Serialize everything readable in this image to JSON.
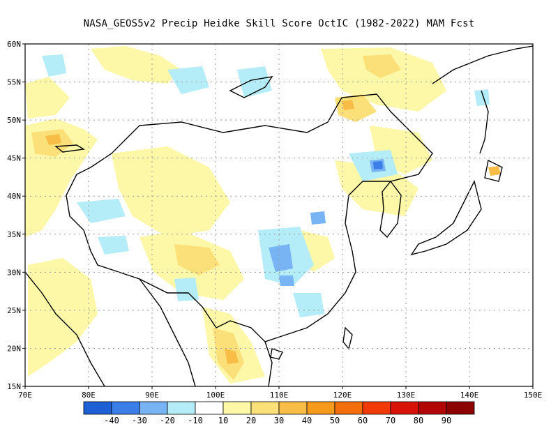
{
  "title": "NASA_GEOS5v2 Precip Heidke Skill Score OctIC (1982-2022) MAM Fcst",
  "map": {
    "lon_range": [
      70,
      150
    ],
    "lat_range": [
      15,
      60
    ],
    "lon_ticks": [
      "70E",
      "80E",
      "90E",
      "100E",
      "110E",
      "120E",
      "130E",
      "140E",
      "150E"
    ],
    "lat_ticks": [
      "15N",
      "20N",
      "25N",
      "30N",
      "35N",
      "40N",
      "45N",
      "50N",
      "55N",
      "60N"
    ],
    "grid": true
  },
  "colorbar": {
    "colors": [
      "#1f5fd6",
      "#3c7ee8",
      "#78b4f3",
      "#b4ecf8",
      "#ffffff",
      "#fdf7a8",
      "#fbe07a",
      "#f7bd47",
      "#f59a1a",
      "#f46f0c",
      "#f23a08",
      "#d81208",
      "#b30606",
      "#8c0303"
    ],
    "labels": [
      "-40",
      "-30",
      "-20",
      "-10",
      "10",
      "20",
      "30",
      "40",
      "50",
      "60",
      "70",
      "80",
      "90"
    ]
  }
}
